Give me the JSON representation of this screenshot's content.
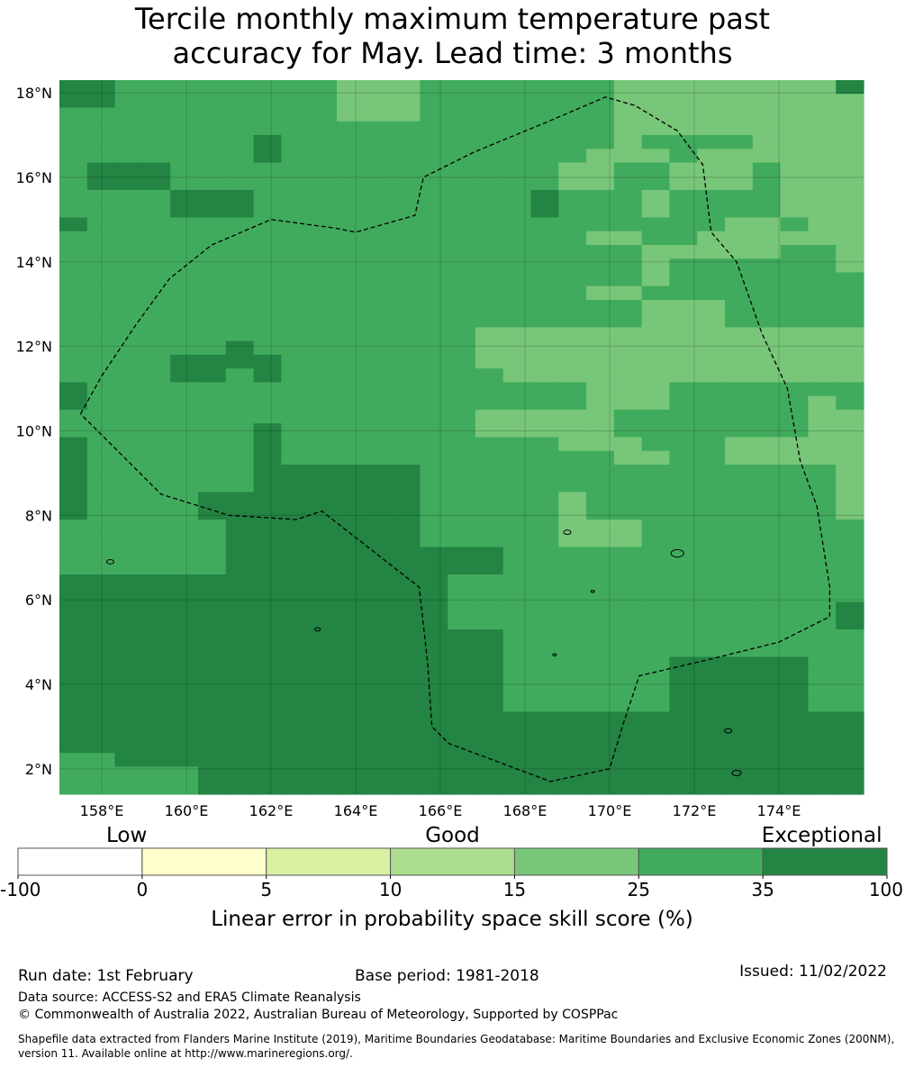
{
  "title_line1": "Tercile monthly maximum temperature past",
  "title_line2": "accuracy for May. Lead time: 3 months",
  "map": {
    "lon_range": [
      157,
      176
    ],
    "lat_range": [
      1.4,
      18.3
    ],
    "x_ticks": [
      {
        "value": 158,
        "label": "158°E"
      },
      {
        "value": 160,
        "label": "160°E"
      },
      {
        "value": 162,
        "label": "162°E"
      },
      {
        "value": 164,
        "label": "164°E"
      },
      {
        "value": 166,
        "label": "166°E"
      },
      {
        "value": 168,
        "label": "168°E"
      },
      {
        "value": 170,
        "label": "170°E"
      },
      {
        "value": 172,
        "label": "172°E"
      },
      {
        "value": 174,
        "label": "174°E"
      }
    ],
    "y_ticks": [
      {
        "value": 18,
        "label": "18°N"
      },
      {
        "value": 16,
        "label": "16°N"
      },
      {
        "value": 14,
        "label": "14°N"
      },
      {
        "value": 12,
        "label": "12°N"
      },
      {
        "value": 10,
        "label": "10°N"
      },
      {
        "value": 8,
        "label": "8°N"
      },
      {
        "value": 6,
        "label": "6°N"
      },
      {
        "value": 4,
        "label": "4°N"
      },
      {
        "value": 2,
        "label": "2°N"
      }
    ],
    "grid_rows": [
      "CCBBBBBBBBAAABBBBBBBAAAAAAAAC",
      "CCBBBBBBBBAAABBBBBBBAAAAAAAAA",
      "BBBBBBBBBBAAABBBBBBBAAAAAAAAA",
      "BBBBBBBBBBBBBBBBBBBBAAAAAAAAA",
      "BBBBBBBCBBBBBBBBBBBBABBBBAAAA",
      "BBBBBBBCBBBBBBBBBBBAAABAAAAAA",
      "BCCCBBBBBBBBBBBBBBAABBAAABAAA",
      "BCCCBBBBBBBBBBBBBBAABBAAABAAA",
      "BBBBCCCBBBBBBBBBBCBBBABBBBAAA",
      "BBBBCCCBBBBBBBBBBCBBBABBBBAAA",
      "CBBBBBBBBBBBBBBBBBBBBBBBAABAA",
      "BBBBBBBBBBBBBBBBBBBAABBAAAAAA",
      "BBBBBBBBBBBBBBBBBBBBBAAAAABBA",
      "BBBBBBBBBBBBBBBBBBBBBABBBBBBA",
      "BBBBBBBBBBBBBBBBBBBBBABBBBBBB",
      "BBBBBBBBBBBBBBBBBBBAABBBBBBBB",
      "BBBBBBBBBBBBBBBBBBBBBAAABBBBB",
      "BBBBBBBBBBBBBBBBBBBBBAAABBBBB",
      "BBBBBBBBBBBBBBBAAAAAAAAAAAAAA",
      "BBBBBBCBBBBBBBBAAAAAAAAAAAAAA",
      "BBBBCCCCBBBBBBBAAAAAAAAAAAAAA",
      "BBBBCCBCBBBBBBBBAAAAAAAAAAAAA",
      "CBBBBBBBBBBBBBBBBBBAAABBBBBBB",
      "CBBBBBBBBBBBBBBBBBBAAABBBBBAB",
      "BBBBBBBBBBBBBBBAAAAABBBBBBBAA",
      "BBBBBBBCBBBBBBBAAAAABBBBBBBAA",
      "CBBBBBBCBBBBBBBBBBAAABBBAAAAA",
      "CBBBBBBCBBBBBBBBBBBBAABBAAAAA",
      "CBBBBBBCCCCCCBBBBBBBBBBBBBBBA",
      "CBBBBBBCCCCCCBBBBBBBBBBBBBBBA",
      "CBBBBCCCCCCCCBBBBBABBBBBBBBBA",
      "CBBBBCCCCCCCCBBBBBABBBBBBBBBA",
      "BBBBBBCCCCCCCBBBBBAAABBBBBBBB",
      "BBBBBBCCCCCCCBBBBBAAABBBBBBBB",
      "BBBBBBCCCCCCCCCCBBBBBBBBBBBBB",
      "BBBBBBCCCCCCCCCCBBBBBBBBBBBBB",
      "CCCCCCCCCCCCCCBBBBBBBBBBBBBBB",
      "CCCCCCCCCCCCCCBBBBBBBBBBBBBBB",
      "CCCCCCCCCCCCCCBBBBBBBBBBBBBBC",
      "CCCCCCCCCCCCCCBBBBBBBBBBBBBBC",
      "CCCCCCCCCCCCCCCCBBBBBBBBBBBBB",
      "CCCCCCCCCCCCCCCCBBBBBBBBBBBBB",
      "CCCCCCCCCCCCCCCCBBBBBBCCCCCBB",
      "CCCCCCCCCCCCCCCCBBBBBBCCCCCBB",
      "CCCCCCCCCCCCCCCCBBBBBBCCCCCBB",
      "CCCCCCCCCCCCCCCCBBBBBBCCCCCBB",
      "CCCCCCCCCCCCCCCCCCCCCCCCCCCCC",
      "CCCCCCCCCCCCCCCCCCCCCCCCCCCCC",
      "CCCCCCCCCCCCCCCCCCCCCCCCCCCCC",
      "BBCCCCCCCCCCCCCCCCCCCCCCCCCCC",
      "BBBBBCCCCCCCCCCCCCCCCCCCCCCCC",
      "BBBBBCCCCCCCCCCCCCCCCCCCCCCCC"
    ],
    "eez_boundary": [
      [
        157.5,
        10.4
      ],
      [
        158.0,
        11.3
      ],
      [
        158.8,
        12.5
      ],
      [
        159.6,
        13.6
      ],
      [
        160.6,
        14.4
      ],
      [
        162.0,
        15.0
      ],
      [
        163.5,
        14.8
      ],
      [
        164.0,
        14.7
      ],
      [
        165.4,
        15.1
      ],
      [
        165.6,
        16.0
      ],
      [
        166.8,
        16.6
      ],
      [
        168.5,
        17.3
      ],
      [
        169.9,
        17.9
      ],
      [
        170.6,
        17.7
      ],
      [
        171.6,
        17.1
      ],
      [
        172.2,
        16.3
      ],
      [
        172.4,
        14.7
      ],
      [
        173.0,
        14.0
      ],
      [
        173.6,
        12.3
      ],
      [
        174.2,
        11.0
      ],
      [
        174.5,
        9.3
      ],
      [
        174.9,
        8.2
      ],
      [
        175.2,
        6.3
      ],
      [
        175.2,
        5.6
      ],
      [
        174.0,
        5.0
      ],
      [
        172.4,
        4.6
      ],
      [
        170.7,
        4.2
      ],
      [
        170.3,
        3.0
      ],
      [
        170.0,
        2.0
      ],
      [
        168.6,
        1.7
      ],
      [
        166.2,
        2.6
      ],
      [
        165.8,
        3.0
      ],
      [
        165.7,
        4.5
      ],
      [
        165.5,
        6.3
      ],
      [
        163.2,
        8.1
      ],
      [
        162.6,
        7.9
      ],
      [
        161.0,
        8.0
      ],
      [
        159.4,
        8.5
      ],
      [
        158.2,
        9.7
      ],
      [
        157.5,
        10.4
      ]
    ]
  },
  "colorbar": {
    "categories": [
      {
        "label": "Low",
        "value_position": 0.125
      },
      {
        "label": "Good",
        "value_position": 0.5
      },
      {
        "label": "Exceptional",
        "value_position": 0.925
      }
    ],
    "segments": [
      {
        "from": "-100",
        "to": "0",
        "color": "#ffffff"
      },
      {
        "from": "0",
        "to": "5",
        "color": "#ffffcc"
      },
      {
        "from": "5",
        "to": "10",
        "color": "#d9f0a3"
      },
      {
        "from": "10",
        "to": "15",
        "color": "#addd8e"
      },
      {
        "from": "15",
        "to": "25",
        "color": "#78c679"
      },
      {
        "from": "25",
        "to": "35",
        "color": "#41ab5d"
      },
      {
        "from": "35",
        "to": "100",
        "color": "#238443"
      }
    ],
    "boundary_labels": [
      "-100",
      "0",
      "5",
      "10",
      "15",
      "25",
      "35",
      "100"
    ],
    "title": "Linear error in probability space skill score (%)"
  },
  "legend_colors": {
    "A": "#78c679",
    "B": "#41ab5d",
    "C": "#238443"
  },
  "footer": {
    "run_date": "Run date: 1st February",
    "base_period": "Base period: 1981-2018",
    "issued": "Issued: 11/02/2022",
    "data_source": "Data source: ACCESS-S2 and ERA5 Climate Reanalysis",
    "copyright": "© Commonwealth of Australia 2022, Australian Bureau of Meteorology, Supported by COSPPac",
    "shapefile": "Shapefile data extracted from Flanders Marine Institute (2019), Maritime Boundaries Geodatabase: Maritime Boundaries and Exclusive Economic Zones (200NM), version 11. Available online at http://www.marineregions.org/."
  }
}
